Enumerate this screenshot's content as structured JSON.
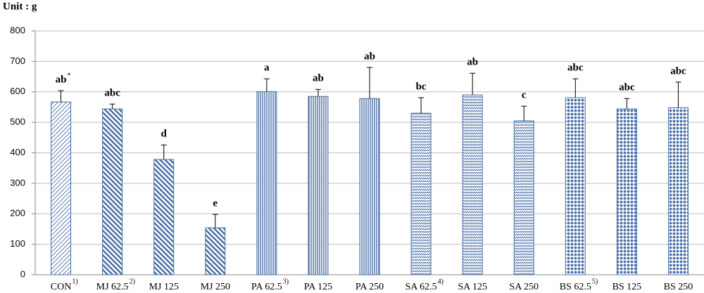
{
  "chart_data": {
    "type": "bar",
    "y_label": "Unit : g",
    "categories": [
      "CON",
      "MJ 62.5",
      "MJ 125",
      "MJ 250",
      "PA 62.5",
      "PA 125",
      "PA 250",
      "SA 62.5",
      "SA 125",
      "SA 250",
      "BS 62.5",
      "BS 125",
      "BS 250"
    ],
    "category_notes": [
      "1)",
      "2)",
      null,
      null,
      "3)",
      null,
      null,
      "4)",
      null,
      null,
      "5)",
      null,
      null
    ],
    "values": [
      567,
      544,
      378,
      154,
      601,
      585,
      578,
      530,
      590,
      505,
      581,
      544,
      548
    ],
    "errors": [
      37,
      16,
      48,
      44,
      42,
      23,
      102,
      51,
      71,
      48,
      62,
      34,
      84
    ],
    "letters": [
      "ab",
      "abc",
      "d",
      "e",
      "a",
      "ab",
      "ab",
      "bc",
      "ab",
      "c",
      "abc",
      "abc",
      "abc"
    ],
    "letter_notes": [
      "*",
      null,
      null,
      null,
      null,
      null,
      null,
      null,
      null,
      null,
      null,
      null,
      null
    ],
    "color": "#4a6fa5",
    "ylim": [
      0,
      800
    ],
    "yticks": [
      0,
      100,
      200,
      300,
      400,
      500,
      600,
      700,
      800
    ],
    "grid": true
  }
}
